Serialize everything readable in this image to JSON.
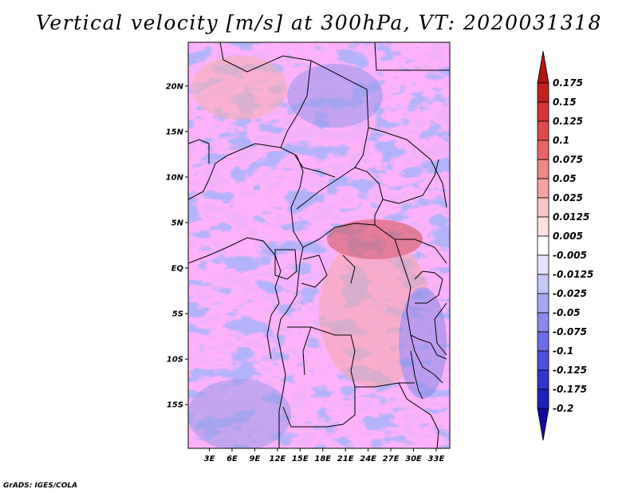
{
  "title": "Vertical velocity [m/s] at 300hPa, VT: 2020031318",
  "credit": "GrADS: IGES/COLA",
  "map": {
    "lat_labels": [
      "20N",
      "15N",
      "10N",
      "5N",
      "EQ",
      "5S",
      "10S",
      "15S"
    ],
    "lat_values": [
      20,
      15,
      10,
      5,
      0,
      -5,
      -10,
      -15
    ],
    "lon_labels": [
      "3E",
      "6E",
      "9E",
      "12E",
      "15E",
      "18E",
      "21E",
      "24E",
      "27E",
      "30E",
      "33E"
    ],
    "lon_values": [
      3,
      6,
      9,
      12,
      15,
      18,
      21,
      24,
      27,
      30,
      33
    ],
    "lon_range": [
      0.2,
      34.8
    ],
    "lat_range": [
      -19.8,
      24.8
    ]
  },
  "colorbar": {
    "labels": [
      "0.175",
      "0.15",
      "0.125",
      "0.1",
      "0.075",
      "0.05",
      "0.025",
      "0.0125",
      "0.005",
      "-0.005",
      "-0.0125",
      "-0.025",
      "-0.05",
      "-0.075",
      "-0.1",
      "-0.125",
      "-0.175",
      "-0.2"
    ],
    "colors": [
      "#b01414",
      "#c42020",
      "#d43434",
      "#e04a4a",
      "#e86666",
      "#f08888",
      "#f5a4a4",
      "#f9c4c4",
      "#fde2e2",
      "#ffffff",
      "#e4e4fb",
      "#c6c6f7",
      "#a8a8f2",
      "#8a8aec",
      "#6c6ce4",
      "#4f4fdc",
      "#3434cc",
      "#2020b8",
      "#140a9e"
    ]
  }
}
